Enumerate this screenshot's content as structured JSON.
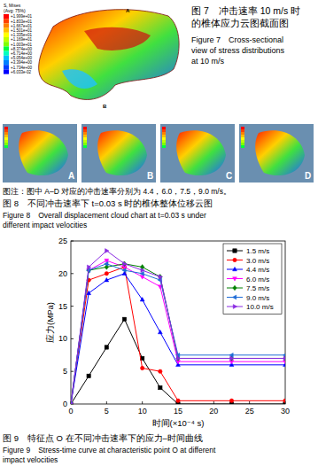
{
  "figure7": {
    "caption_zh": [
      "图 7　冲击速率 10 m/s 时",
      "的椎体应力云图截面图"
    ],
    "caption_en": [
      "Figure 7　Cross-sectional",
      "view of stress distributions",
      "at 10 m/s"
    ],
    "legend_title": [
      "S, Mises",
      "(Avg: 75%)"
    ],
    "legend_values": [
      "+1.999e+01",
      "+1.833e+01",
      "+1.667e+01",
      "+1.501e+01",
      "+1.335e+01",
      "+1.169e+01",
      "+1.003e+01",
      "+8.374e+00",
      "+6.714e+00",
      "+5.054e+00",
      "+3.394e+00",
      "+1.734e+00",
      "+6.033e-02"
    ],
    "labels": [
      "A",
      "B"
    ]
  },
  "figure8": {
    "panels": [
      "A",
      "B",
      "C",
      "D"
    ],
    "note": "图注：图中 A–D 对应的冲击速率分别为 4.4，6.0，7.5，9.0 m/s。",
    "caption_zh": [
      "图 8　不同冲击速率下 t=0.03 s 时的椎体整体位移云图"
    ],
    "caption_en": [
      "Figure 8　Overall displacement cloud chart at t=0.03 s under",
      "different impact velocities"
    ]
  },
  "figure9": {
    "caption_zh": [
      "图 9　特征点 O 在不同冲击速率下的应力–时间曲线"
    ],
    "caption_en": [
      "Figure 9　Stress-time curve at characteristic point O at different",
      "impact velocities"
    ]
  },
  "chart_data": {
    "type": "line",
    "x_label": "时间(×10⁻⁴ s)",
    "y_label": "应力(MPa)",
    "x": [
      0,
      2.5,
      5,
      7.5,
      10,
      12.5,
      15,
      22.5,
      30
    ],
    "xlim": [
      0,
      30
    ],
    "xticks": [
      0,
      5,
      10,
      15,
      20,
      25,
      30
    ],
    "ylim": [
      0,
      25
    ],
    "yticks": [
      0,
      5,
      10,
      15,
      20,
      25
    ],
    "grid": false,
    "legend": "upper right",
    "series": [
      {
        "name": "1.5 m/s",
        "color": "#000000",
        "marker": "square",
        "values": [
          0,
          4.3,
          8.7,
          13,
          7,
          2.5,
          0,
          0,
          0
        ]
      },
      {
        "name": "3.0 m/s",
        "color": "#ff0000",
        "marker": "circle",
        "values": [
          0,
          19,
          20,
          21,
          5.5,
          5,
          0.5,
          0.5,
          0.5
        ]
      },
      {
        "name": "4.4 m/s",
        "color": "#0000ff",
        "marker": "triangle-up",
        "values": [
          0,
          17,
          19,
          20,
          16,
          11,
          6,
          6,
          6
        ]
      },
      {
        "name": "6.0 m/s",
        "color": "#ff00ff",
        "marker": "triangle-down",
        "values": [
          0,
          20.5,
          22,
          21,
          19.5,
          18,
          6.5,
          6.5,
          6.5
        ]
      },
      {
        "name": "7.5 m/s",
        "color": "#008000",
        "marker": "diamond",
        "values": [
          0,
          20.5,
          21,
          21.5,
          21,
          19.5,
          7,
          7,
          7
        ]
      },
      {
        "name": "9.0 m/s",
        "color": "#1e6cd6",
        "marker": "triangle-left",
        "values": [
          0,
          20.5,
          21.5,
          20.5,
          20,
          19,
          7.5,
          7.5,
          7.5
        ]
      },
      {
        "name": "10.0 m/s",
        "color": "#8a2be2",
        "marker": "triangle-right",
        "values": [
          0,
          21,
          23.5,
          21.5,
          20.5,
          19.5,
          7,
          7,
          7
        ]
      }
    ]
  }
}
